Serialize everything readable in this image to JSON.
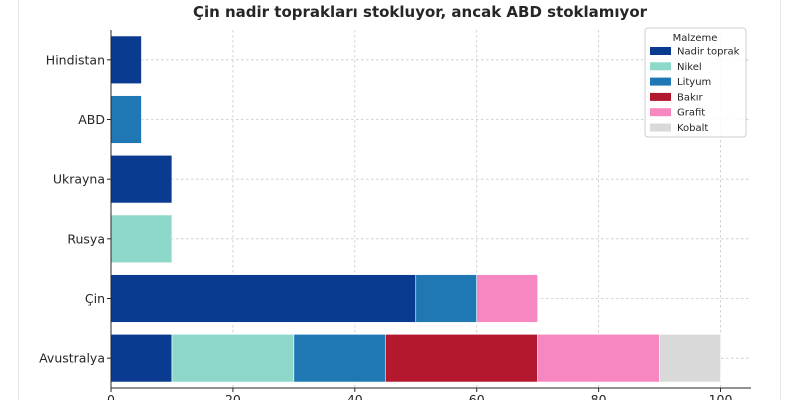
{
  "chart_data": {
    "type": "bar",
    "orientation": "horizontal",
    "stacked": true,
    "title": "Çin nadir toprakları stokluyor, ancak ABD stoklamıyor",
    "xlabel": "",
    "ylabel": "",
    "xlim": [
      0,
      105
    ],
    "xticks": [
      0,
      20,
      40,
      60,
      80,
      100
    ],
    "grid": true,
    "legend_title": "Malzeme",
    "legend_position": "top-right",
    "categories": [
      "Avustralya",
      "Çin",
      "Rusya",
      "Ukrayna",
      "ABD",
      "Hindistan"
    ],
    "series": [
      {
        "name": "Nadir toprak",
        "color": "#0b3b91",
        "values": [
          10,
          50,
          0,
          10,
          0,
          5
        ]
      },
      {
        "name": "Nikel",
        "color": "#8dd8c8",
        "values": [
          20,
          0,
          10,
          0,
          0,
          0
        ]
      },
      {
        "name": "Lityum",
        "color": "#1f78b4",
        "values": [
          15,
          10,
          0,
          0,
          5,
          0
        ]
      },
      {
        "name": "Bakır",
        "color": "#b3182f",
        "values": [
          25,
          0,
          0,
          0,
          0,
          0
        ]
      },
      {
        "name": "Grafit",
        "color": "#f787c0",
        "values": [
          20,
          10,
          0,
          0,
          0,
          0
        ]
      },
      {
        "name": "Kobalt",
        "color": "#d9d9d9",
        "values": [
          10,
          0,
          0,
          0,
          0,
          0
        ]
      }
    ]
  }
}
